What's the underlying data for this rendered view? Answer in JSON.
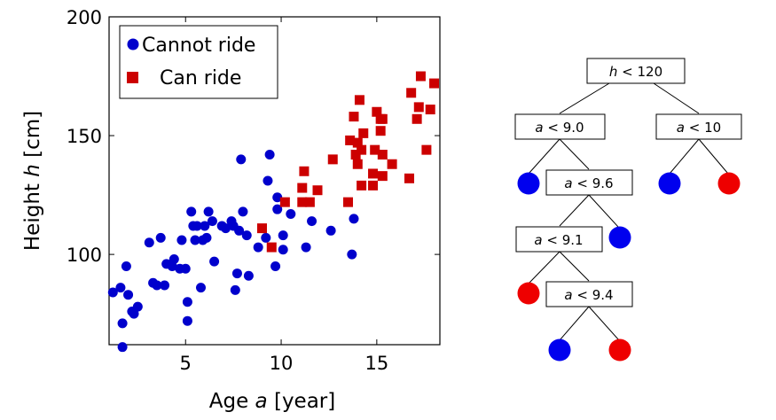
{
  "chart_data": {
    "type": "scatter",
    "xlabel_prefix": "Age ",
    "xlabel_var": "a",
    "xlabel_unit": " [year]",
    "ylabel_prefix": "Height ",
    "ylabel_var": "h",
    "ylabel_unit": " [cm]",
    "xlim": [
      1,
      18.3
    ],
    "ylim": [
      62,
      200
    ],
    "xticks": [
      5,
      10,
      15
    ],
    "yticks": [
      100,
      150,
      200
    ],
    "grid": false,
    "legend_placement": "top-left",
    "series": [
      {
        "name": "Cannot ride",
        "marker": "circle",
        "color": "#0000cc",
        "points": [
          [
            1.2,
            84
          ],
          [
            1.6,
            86
          ],
          [
            1.7,
            71
          ],
          [
            1.7,
            61
          ],
          [
            1.9,
            95
          ],
          [
            2.0,
            83
          ],
          [
            2.2,
            76
          ],
          [
            2.3,
            75
          ],
          [
            2.5,
            78
          ],
          [
            3.1,
            105
          ],
          [
            3.3,
            88
          ],
          [
            3.5,
            87
          ],
          [
            3.7,
            107
          ],
          [
            3.9,
            87
          ],
          [
            4.0,
            96
          ],
          [
            4.3,
            95
          ],
          [
            4.4,
            98
          ],
          [
            4.7,
            94
          ],
          [
            4.8,
            106
          ],
          [
            5.0,
            94
          ],
          [
            5.1,
            72
          ],
          [
            5.1,
            80
          ],
          [
            5.3,
            118
          ],
          [
            5.4,
            112
          ],
          [
            5.5,
            106
          ],
          [
            5.6,
            112
          ],
          [
            5.8,
            86
          ],
          [
            5.9,
            106
          ],
          [
            6.0,
            112
          ],
          [
            6.1,
            107
          ],
          [
            6.2,
            118
          ],
          [
            6.4,
            114
          ],
          [
            6.5,
            97
          ],
          [
            6.9,
            112
          ],
          [
            7.1,
            111
          ],
          [
            7.4,
            114
          ],
          [
            7.5,
            112
          ],
          [
            7.6,
            85
          ],
          [
            7.7,
            92
          ],
          [
            7.8,
            110
          ],
          [
            7.9,
            140
          ],
          [
            8.0,
            118
          ],
          [
            8.2,
            108
          ],
          [
            8.3,
            91
          ],
          [
            8.8,
            103
          ],
          [
            9.2,
            107
          ],
          [
            9.3,
            131
          ],
          [
            9.4,
            142
          ],
          [
            9.7,
            95
          ],
          [
            9.8,
            124
          ],
          [
            9.8,
            119
          ],
          [
            10.1,
            102
          ],
          [
            10.1,
            108
          ],
          [
            10.5,
            117
          ],
          [
            11.3,
            103
          ],
          [
            11.6,
            114
          ],
          [
            12.6,
            110
          ],
          [
            13.7,
            100
          ],
          [
            13.8,
            115
          ]
        ]
      },
      {
        "name": "Can ride",
        "marker": "square",
        "color": "#cc0000",
        "points": [
          [
            9.0,
            111
          ],
          [
            9.5,
            103
          ],
          [
            10.2,
            122
          ],
          [
            11.1,
            128
          ],
          [
            11.1,
            122
          ],
          [
            11.2,
            135
          ],
          [
            11.5,
            122
          ],
          [
            11.9,
            127
          ],
          [
            12.7,
            140
          ],
          [
            13.5,
            122
          ],
          [
            13.6,
            148
          ],
          [
            13.8,
            158
          ],
          [
            13.9,
            142
          ],
          [
            14.0,
            147
          ],
          [
            14.0,
            138
          ],
          [
            14.1,
            165
          ],
          [
            14.2,
            129
          ],
          [
            14.2,
            144
          ],
          [
            14.3,
            151
          ],
          [
            14.8,
            129
          ],
          [
            14.8,
            134
          ],
          [
            14.9,
            144
          ],
          [
            15.0,
            160
          ],
          [
            15.2,
            152
          ],
          [
            15.2,
            157
          ],
          [
            15.3,
            157
          ],
          [
            15.3,
            133
          ],
          [
            15.3,
            142
          ],
          [
            15.8,
            138
          ],
          [
            16.7,
            132
          ],
          [
            16.8,
            168
          ],
          [
            17.1,
            157
          ],
          [
            17.2,
            162
          ],
          [
            17.3,
            175
          ],
          [
            17.6,
            144
          ],
          [
            17.8,
            161
          ],
          [
            18.0,
            172
          ]
        ]
      }
    ]
  },
  "tree": {
    "nodes": [
      {
        "var": "h",
        "op": " < ",
        "num": "120"
      },
      {
        "var": "a",
        "op": " < ",
        "num": "9.0"
      },
      {
        "var": "a",
        "op": " < ",
        "num": "10"
      },
      {
        "var": "a",
        "op": " < ",
        "num": "9.6"
      },
      {
        "var": "a",
        "op": " < ",
        "num": "9.1"
      },
      {
        "var": "a",
        "op": " < ",
        "num": "9.4"
      }
    ],
    "leaves": [
      {
        "class": "Cannot ride",
        "color": "#0000ee"
      },
      {
        "class": "Cannot ride",
        "color": "#0000ee"
      },
      {
        "class": "Can ride",
        "color": "#ee0000"
      },
      {
        "class": "Cannot ride",
        "color": "#0000ee"
      },
      {
        "class": "Can ride",
        "color": "#ee0000"
      },
      {
        "class": "Cannot ride",
        "color": "#0000ee"
      },
      {
        "class": "Can ride",
        "color": "#ee0000"
      }
    ]
  }
}
